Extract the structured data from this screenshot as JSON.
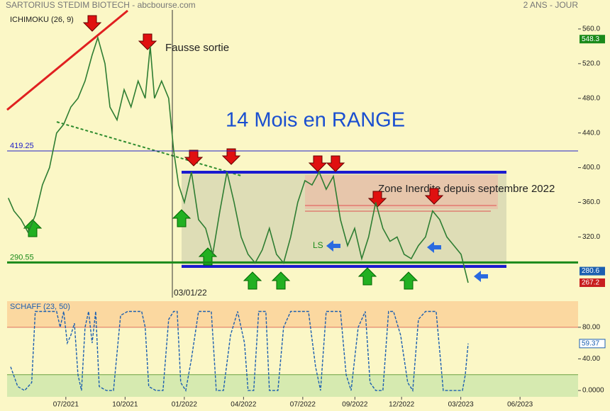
{
  "chart_data": [
    {
      "type": "line",
      "title": "SARTORIUS STEDIM BIOTECH - abcbourse.com",
      "subtitle": "2 ANS - JOUR",
      "indicator": "ICHIMOKU (26, 9)",
      "annotations": [
        "Fausse sortie",
        "14 Mois en RANGE",
        "Zone Inerdite depuis septembre 2022",
        "LS",
        "03/01/22"
      ],
      "xlim": [
        2021.252,
        2023.662
      ],
      "ylim": [
        250,
        582
      ],
      "yticks": [
        {
          "value": 320,
          "label": "320.0"
        },
        {
          "value": 360,
          "label": "360.0"
        },
        {
          "value": 400,
          "label": "400.0"
        },
        {
          "value": 440,
          "label": "440.0"
        },
        {
          "value": 480,
          "label": "480.0"
        },
        {
          "value": 520,
          "label": "520.0"
        },
        {
          "value": 560,
          "label": "560.0"
        }
      ],
      "levels": [
        {
          "value": 419.25,
          "color": "#2020c8"
        },
        {
          "value": 290.55,
          "color": "#1a8a1a"
        }
      ],
      "price_labels": [
        {
          "value": 548.3,
          "color": "#1a8a1a"
        },
        {
          "value": 280.6,
          "color": "#1c5fb0"
        },
        {
          "value": 267.2,
          "color": "#c81e1e"
        }
      ],
      "series": [
        {
          "name": "SARTORIUS STEDIM BIOTECH",
          "color": "#2e7d32",
          "x": [
            2021.257,
            2021.281,
            2021.311,
            2021.341,
            2021.371,
            2021.401,
            2021.431,
            2021.461,
            2021.491,
            2021.521,
            2021.551,
            2021.581,
            2021.611,
            2021.635,
            2021.665,
            2021.686,
            2021.716,
            2021.746,
            2021.775,
            2021.805,
            2021.835,
            2021.856,
            2021.874,
            2021.904,
            2021.934,
            2021.955,
            2021.976,
            2022.0,
            2022.03,
            2022.06,
            2022.09,
            2022.12,
            2022.15,
            2022.18,
            2022.21,
            2022.24,
            2022.269,
            2022.299,
            2022.329,
            2022.359,
            2022.389,
            2022.419,
            2022.449,
            2022.479,
            2022.509,
            2022.539,
            2022.569,
            2022.599,
            2022.629,
            2022.659,
            2022.689,
            2022.719,
            2022.749,
            2022.778,
            2022.808,
            2022.838,
            2022.868,
            2022.898,
            2022.928,
            2022.958,
            2022.988,
            2023.018,
            2023.048,
            2023.078,
            2023.108,
            2023.138,
            2023.168,
            2023.198
          ],
          "values": [
            365,
            350,
            340,
            325,
            345,
            380,
            400,
            440,
            450,
            470,
            480,
            500,
            530,
            550,
            520,
            470,
            455,
            490,
            470,
            500,
            480,
            540,
            480,
            500,
            480,
            420,
            380,
            360,
            395,
            340,
            330,
            300,
            350,
            395,
            360,
            320,
            300,
            290,
            305,
            330,
            300,
            290,
            320,
            360,
            385,
            380,
            395,
            375,
            390,
            340,
            310,
            330,
            295,
            320,
            360,
            330,
            315,
            320,
            300,
            295,
            310,
            320,
            350,
            340,
            320,
            310,
            300,
            267.2
          ]
        }
      ]
    },
    {
      "type": "line",
      "title": "SCHAFF (23, 50)",
      "xlim": [
        2021.252,
        2023.662
      ],
      "ylim": [
        -8,
        113
      ],
      "xticks": [
        {
          "value": 2021.5,
          "label": "07/2021"
        },
        {
          "value": 2021.75,
          "label": "10/2021"
        },
        {
          "value": 2022.0,
          "label": "01/2022"
        },
        {
          "value": 2022.25,
          "label": "04/2022"
        },
        {
          "value": 2022.5,
          "label": "07/2022"
        },
        {
          "value": 2022.72,
          "label": "09/2022"
        },
        {
          "value": 2022.917,
          "label": "12/2022"
        },
        {
          "value": 2023.167,
          "label": "03/2023"
        },
        {
          "value": 2023.417,
          "label": "06/2023"
        }
      ],
      "yticks": [
        {
          "value": 0,
          "label": "0.0000"
        },
        {
          "value": 40,
          "label": "40.00"
        },
        {
          "value": 80,
          "label": "80.00"
        }
      ],
      "bands": [
        20,
        80
      ],
      "last_value": 59.37,
      "series": [
        {
          "name": "SCHAFF",
          "color": "#1c5fb0",
          "x": [
            2021.267,
            2021.297,
            2021.326,
            2021.356,
            2021.371,
            2021.401,
            2021.431,
            2021.461,
            2021.476,
            2021.491,
            2021.506,
            2021.521,
            2021.536,
            2021.551,
            2021.566,
            2021.581,
            2021.596,
            2021.611,
            2021.626,
            2021.641,
            2021.671,
            2021.701,
            2021.731,
            2021.761,
            2021.79,
            2021.82,
            2021.835,
            2021.85,
            2021.88,
            2021.91,
            2021.934,
            2021.955,
            2021.97,
            2021.985,
            2022.006,
            2022.03,
            2022.06,
            2022.09,
            2022.114,
            2022.135,
            2022.165,
            2022.195,
            2022.225,
            2022.254,
            2022.269,
            2022.293,
            2022.314,
            2022.344,
            2022.359,
            2022.395,
            2022.419,
            2022.449,
            2022.479,
            2022.524,
            2022.554,
            2022.575,
            2022.599,
            2022.629,
            2022.659,
            2022.683,
            2022.704,
            2022.734,
            2022.764,
            2022.784,
            2022.808,
            2022.838,
            2022.862,
            2022.883,
            2022.913,
            2022.943,
            2022.964,
            2022.988,
            2023.018,
            2023.063,
            2023.078,
            2023.093,
            2023.138,
            2023.174,
            2023.186,
            2023.198
          ],
          "values": [
            30,
            5,
            0,
            10,
            100,
            100,
            100,
            100,
            80,
            100,
            60,
            70,
            85,
            20,
            0,
            80,
            100,
            60,
            100,
            5,
            0,
            0,
            95,
            100,
            100,
            100,
            80,
            5,
            0,
            0,
            90,
            100,
            100,
            10,
            0,
            40,
            100,
            100,
            100,
            0,
            0,
            70,
            100,
            60,
            0,
            0,
            100,
            100,
            0,
            0,
            80,
            100,
            100,
            100,
            30,
            0,
            100,
            100,
            100,
            20,
            0,
            80,
            100,
            10,
            0,
            0,
            100,
            100,
            70,
            10,
            0,
            90,
            100,
            100,
            50,
            0,
            0,
            0,
            20,
            59.37
          ]
        }
      ]
    }
  ]
}
